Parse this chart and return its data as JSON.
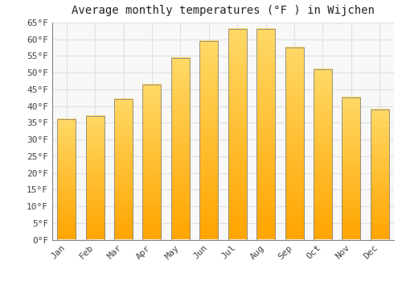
{
  "title": "Average monthly temperatures (°F ) in Wijchen",
  "months": [
    "Jan",
    "Feb",
    "Mar",
    "Apr",
    "May",
    "Jun",
    "Jul",
    "Aug",
    "Sep",
    "Oct",
    "Nov",
    "Dec"
  ],
  "values": [
    36,
    37,
    42,
    46.5,
    54.5,
    59.5,
    63,
    63,
    57.5,
    51,
    42.5,
    39
  ],
  "bar_color_top": "#FFD966",
  "bar_color_bottom": "#FFA500",
  "bar_edge_color": "#888888",
  "background_color": "#FFFFFF",
  "plot_bg_color": "#F8F8F8",
  "ylim": [
    0,
    65
  ],
  "yticks": [
    0,
    5,
    10,
    15,
    20,
    25,
    30,
    35,
    40,
    45,
    50,
    55,
    60,
    65
  ],
  "grid_color": "#E0E0E0",
  "title_fontsize": 10,
  "tick_fontsize": 8
}
